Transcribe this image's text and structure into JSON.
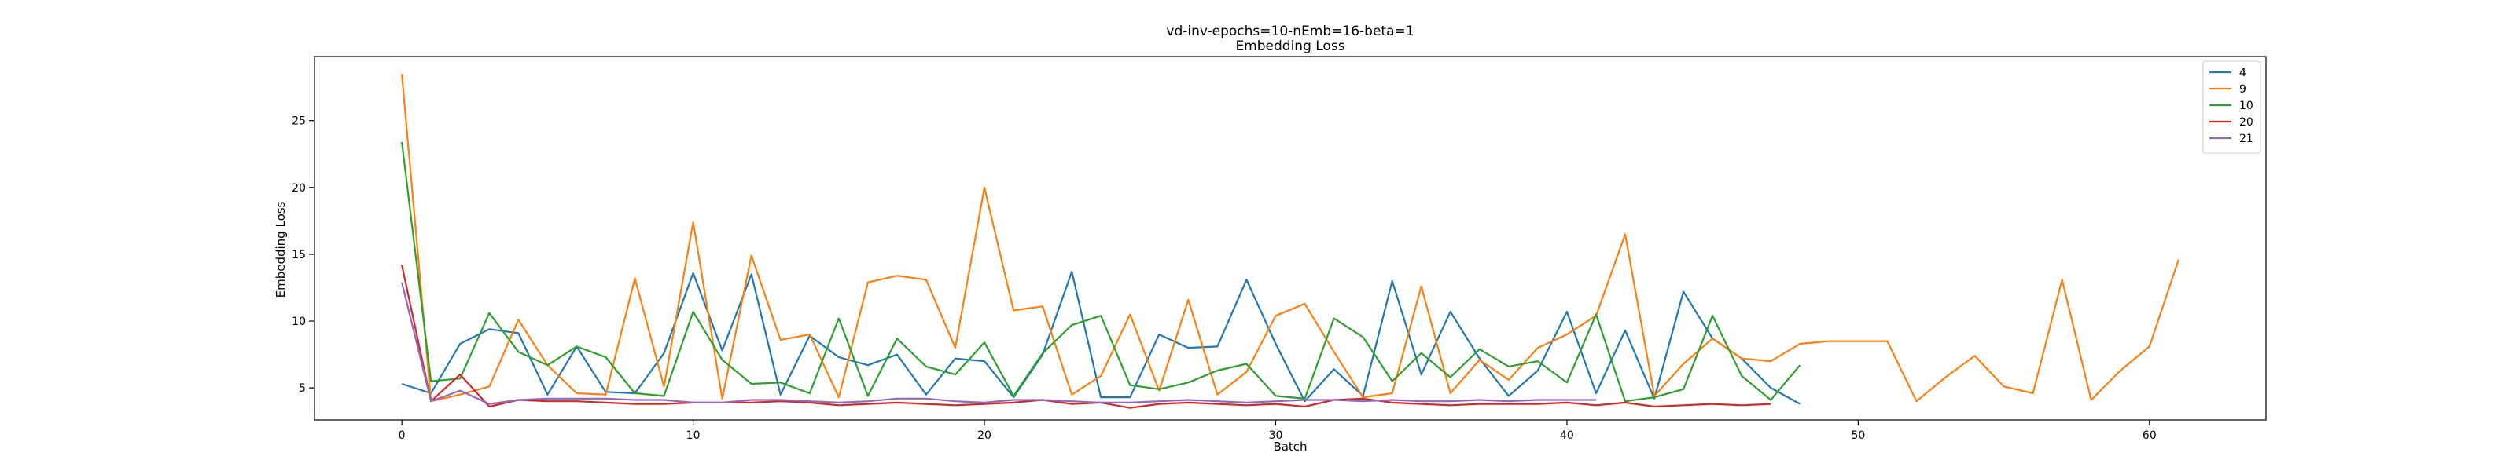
{
  "chart_data": {
    "type": "line",
    "title": "vd-inv-epochs=10-nEmb=16-beta=1",
    "subtitle": "Embedding Loss",
    "xlabel": "Batch",
    "ylabel": "Embedding Loss",
    "xlim": [
      -3,
      64
    ],
    "ylim": [
      2.6,
      29.8
    ],
    "xticks": [
      0,
      10,
      20,
      30,
      40,
      50,
      60
    ],
    "yticks": [
      5,
      10,
      15,
      20,
      25
    ],
    "grid": false,
    "legend_position": "top-right",
    "series": [
      {
        "name": "4",
        "color": "#1f77b4",
        "values": [
          5.3,
          4.6,
          8.3,
          9.4,
          9.1,
          4.5,
          8.1,
          4.7,
          4.6,
          7.6,
          13.6,
          7.8,
          13.5,
          4.5,
          8.9,
          7.3,
          6.7,
          7.5,
          4.5,
          7.2,
          7.0,
          4.3,
          7.5,
          13.7,
          4.3,
          4.3,
          9.0,
          8.0,
          8.1,
          13.1,
          8.3,
          4.0,
          6.4,
          4.4,
          13.0,
          6.0,
          10.7,
          7.2,
          4.4,
          6.3,
          10.7,
          4.6,
          9.3,
          4.2,
          12.2,
          8.7,
          7.2,
          5.0,
          3.8
        ]
      },
      {
        "name": "9",
        "color": "#ff7f0e",
        "values": [
          28.5,
          4.0,
          4.5,
          5.1,
          10.1,
          6.7,
          4.6,
          4.5,
          13.2,
          5.1,
          17.4,
          4.2,
          14.9,
          8.6,
          9.0,
          4.3,
          12.9,
          13.4,
          13.1,
          8.0,
          20.0,
          10.8,
          11.1,
          4.5,
          5.9,
          10.5,
          4.8,
          11.6,
          4.5,
          6.2,
          10.4,
          11.3,
          7.7,
          4.3,
          4.6,
          12.6,
          4.6,
          7.1,
          5.6,
          8.0,
          9.0,
          10.4,
          16.5,
          4.4,
          6.8,
          8.7,
          7.2,
          7.0,
          8.3,
          8.5,
          8.5,
          8.5,
          4.0,
          5.8,
          7.4,
          5.1,
          4.6,
          13.1,
          4.1,
          6.3,
          8.1,
          14.6
        ]
      },
      {
        "name": "10",
        "color": "#2ca02c",
        "values": [
          23.4,
          5.5,
          5.7,
          10.6,
          7.7,
          6.7,
          8.1,
          7.3,
          4.6,
          4.4,
          10.7,
          7.1,
          5.3,
          5.4,
          4.6,
          10.2,
          4.4,
          8.7,
          6.6,
          6.0,
          8.4,
          4.4,
          7.6,
          9.7,
          10.4,
          5.2,
          4.9,
          5.4,
          6.3,
          6.8,
          4.4,
          4.2,
          10.2,
          8.8,
          5.5,
          7.6,
          5.8,
          7.9,
          6.6,
          7.0,
          5.4,
          10.5,
          4.0,
          4.3,
          4.9,
          10.4,
          5.9,
          4.1,
          6.7
        ]
      },
      {
        "name": "20",
        "color": "#d62728",
        "values": [
          14.2,
          4.0,
          6.0,
          3.6,
          4.1,
          4.0,
          4.0,
          3.9,
          3.8,
          3.8,
          3.9,
          3.9,
          3.9,
          4.0,
          3.9,
          3.7,
          3.8,
          3.9,
          3.8,
          3.7,
          3.8,
          3.9,
          4.1,
          3.8,
          3.9,
          3.5,
          3.8,
          3.9,
          3.8,
          3.7,
          3.8,
          3.6,
          4.1,
          4.2,
          3.9,
          3.8,
          3.7,
          3.8,
          3.8,
          3.8,
          3.9,
          3.7,
          3.9,
          3.6,
          3.7,
          3.8,
          3.7,
          3.8
        ]
      },
      {
        "name": "21",
        "color": "#9467bd",
        "values": [
          12.9,
          4.0,
          4.8,
          3.8,
          4.1,
          4.2,
          4.2,
          4.2,
          4.1,
          4.1,
          3.9,
          3.9,
          4.1,
          4.1,
          4.0,
          3.9,
          4.0,
          4.2,
          4.2,
          4.0,
          3.9,
          4.1,
          4.1,
          4.0,
          3.9,
          3.9,
          4.0,
          4.1,
          4.0,
          3.9,
          4.0,
          4.1,
          4.1,
          4.0,
          4.1,
          4.0,
          4.0,
          4.1,
          4.0,
          4.1,
          4.1,
          4.1
        ]
      }
    ]
  }
}
